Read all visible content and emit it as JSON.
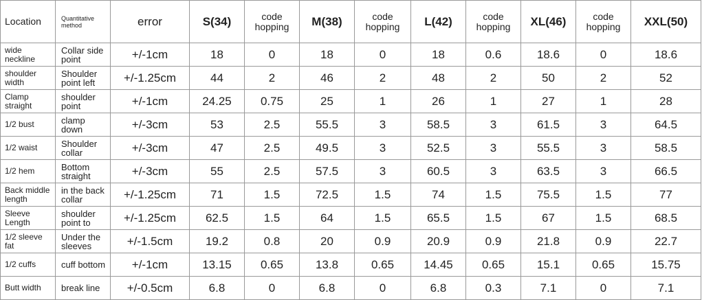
{
  "table": {
    "header": [
      "Location",
      "Quantitative method",
      "error",
      "S(34)",
      "code hopping",
      "M(38)",
      "code hopping",
      "L(42)",
      "code hopping",
      "XL(46)",
      "code hopping",
      "XXL(50)"
    ],
    "rows": [
      [
        "wide neckline",
        "Collar side point",
        "+/-1cm",
        18,
        0,
        18,
        0,
        18,
        0.6,
        18.6,
        0,
        18.6
      ],
      [
        "shoulder width",
        "Shoulder point left",
        "+/-1.25cm",
        44,
        2,
        46,
        2,
        48,
        2,
        50,
        2,
        52
      ],
      [
        "Clamp straight",
        "shoulder point",
        "+/-1cm",
        24.25,
        0.75,
        25,
        1,
        26,
        1,
        27,
        1,
        28
      ],
      [
        "1/2 bust",
        "clamp down",
        "+/-3cm",
        53,
        2.5,
        55.5,
        3,
        58.5,
        3,
        61.5,
        3,
        64.5
      ],
      [
        "1/2 waist",
        "Shoulder collar",
        "+/-3cm",
        47,
        2.5,
        49.5,
        3,
        52.5,
        3,
        55.5,
        3,
        58.5
      ],
      [
        "1/2 hem",
        "Bottom straight",
        "+/-3cm",
        55,
        2.5,
        57.5,
        3,
        60.5,
        3,
        63.5,
        3,
        66.5
      ],
      [
        "Back middle length",
        "in the back collar",
        "+/-1.25cm",
        71,
        1.5,
        72.5,
        1.5,
        74,
        1.5,
        75.5,
        1.5,
        77
      ],
      [
        "Sleeve Length",
        "shoulder point to",
        "+/-1.25cm",
        62.5,
        1.5,
        64,
        1.5,
        65.5,
        1.5,
        67,
        1.5,
        68.5
      ],
      [
        "1/2 sleeve fat",
        "Under the sleeves",
        "+/-1.5cm",
        19.2,
        0.8,
        20,
        0.9,
        20.9,
        0.9,
        21.8,
        0.9,
        22.7
      ],
      [
        "1/2 cuffs",
        "cuff bottom",
        "+/-1cm",
        13.15,
        0.65,
        13.8,
        0.65,
        14.45,
        0.65,
        15.1,
        0.65,
        15.75
      ],
      [
        "Butt width",
        "break line",
        "+/-0.5cm",
        6.8,
        0,
        6.8,
        0,
        6.8,
        0.3,
        7.1,
        0,
        7.1
      ]
    ]
  }
}
